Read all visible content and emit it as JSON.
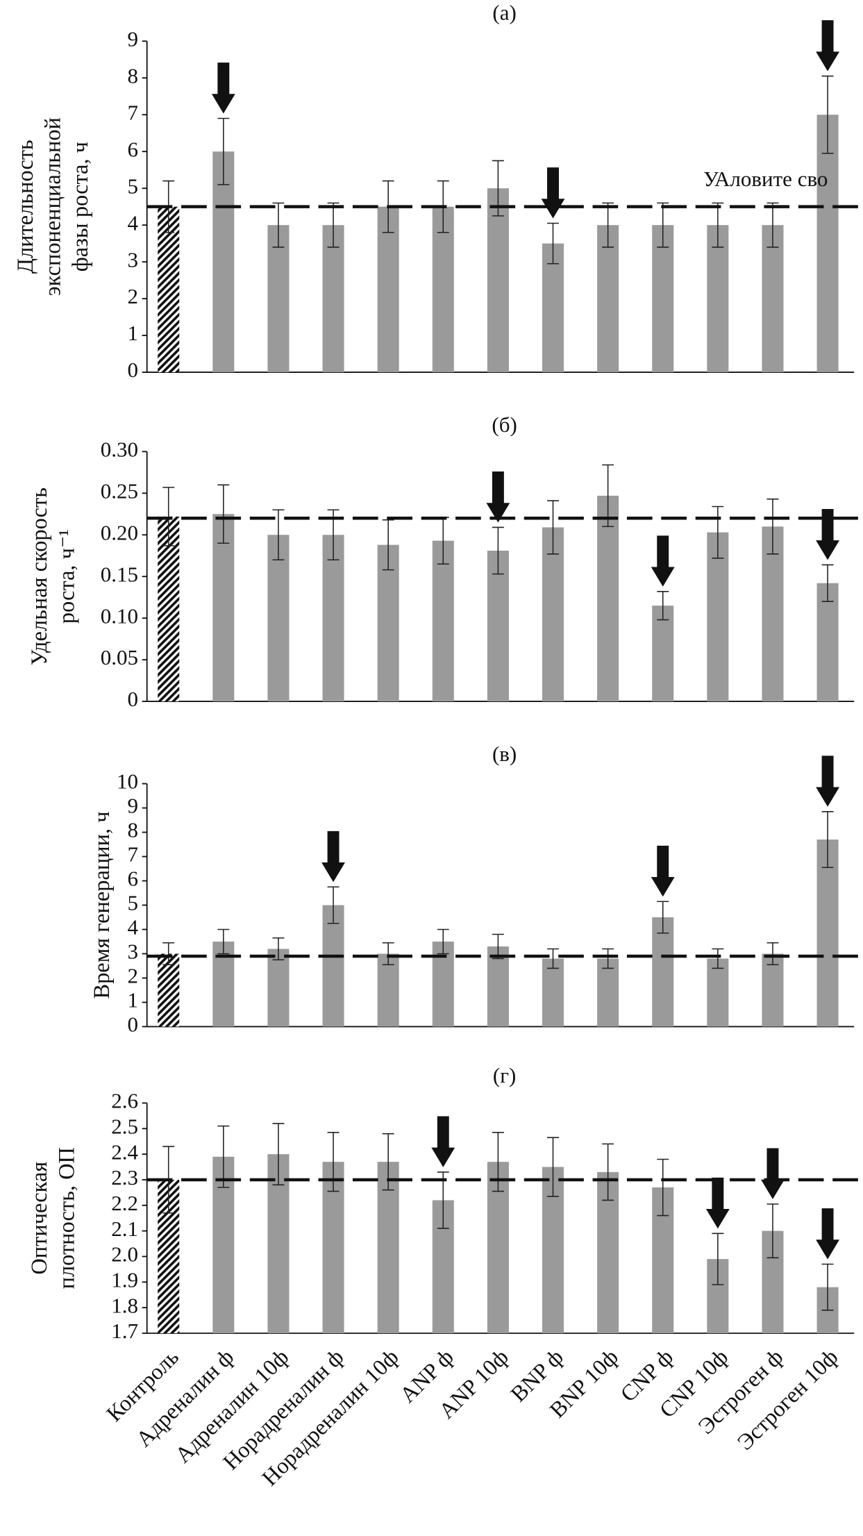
{
  "chart_data": [
    {
      "type": "bar",
      "title": "(а)",
      "ylabel": [
        "Длительность",
        "экспоненциальной",
        "фазы роста, ч"
      ],
      "values": [
        4.5,
        6.0,
        4.0,
        4.0,
        4.5,
        4.5,
        5.0,
        3.5,
        4.0,
        4.0,
        4.0,
        4.0,
        7.0
      ],
      "errors": [
        0.7,
        0.9,
        0.6,
        0.6,
        0.7,
        0.7,
        0.75,
        0.55,
        0.6,
        0.6,
        0.6,
        0.6,
        1.05
      ],
      "marked": [
        false,
        true,
        false,
        false,
        false,
        false,
        false,
        true,
        false,
        false,
        false,
        false,
        true
      ],
      "hatched": [
        true,
        false,
        false,
        false,
        false,
        false,
        false,
        false,
        false,
        false,
        false,
        false,
        false
      ],
      "reference": 4.5,
      "annotation": "УАловите сво",
      "color": "#9a9a9a",
      "ylim": [
        0,
        9
      ],
      "yticks": [
        0,
        1,
        2,
        3,
        4,
        5,
        6,
        7,
        8,
        9
      ]
    },
    {
      "type": "bar",
      "title": "(б)",
      "ylabel": [
        "Удельная скорость",
        "роста, ч⁻¹"
      ],
      "values": [
        0.222,
        0.225,
        0.2,
        0.2,
        0.188,
        0.193,
        0.181,
        0.209,
        0.247,
        0.115,
        0.203,
        0.21,
        0.142
      ],
      "errors": [
        0.035,
        0.035,
        0.03,
        0.03,
        0.03,
        0.028,
        0.028,
        0.032,
        0.037,
        0.017,
        0.031,
        0.033,
        0.022
      ],
      "marked": [
        false,
        false,
        false,
        false,
        false,
        false,
        true,
        false,
        false,
        true,
        false,
        false,
        true
      ],
      "hatched": [
        true,
        false,
        false,
        false,
        false,
        false,
        false,
        false,
        false,
        false,
        false,
        false,
        false
      ],
      "reference": 0.22,
      "color": "#9a9a9a",
      "ylim": [
        0,
        0.3
      ],
      "yticks": [
        0,
        0.05,
        {
          "value": 0.1,
          "label": "0.10"
        },
        0.15,
        {
          "value": 0.2,
          "label": "0.20"
        },
        0.25,
        {
          "value": 0.3,
          "label": "0.30"
        }
      ]
    },
    {
      "type": "bar",
      "title": "(в)",
      "ylabel": [
        "Время генерации, ч"
      ],
      "values": [
        3.0,
        3.5,
        3.2,
        5.0,
        3.0,
        3.5,
        3.3,
        2.8,
        2.8,
        4.5,
        2.8,
        3.0,
        7.7
      ],
      "errors": [
        0.45,
        0.5,
        0.45,
        0.75,
        0.45,
        0.5,
        0.5,
        0.4,
        0.4,
        0.65,
        0.4,
        0.45,
        1.15
      ],
      "marked": [
        false,
        false,
        false,
        true,
        false,
        false,
        false,
        false,
        false,
        true,
        false,
        false,
        true
      ],
      "hatched": [
        true,
        false,
        false,
        false,
        false,
        false,
        false,
        false,
        false,
        false,
        false,
        false,
        false
      ],
      "reference": 2.9,
      "color": "#9a9a9a",
      "ylim": [
        0,
        10
      ],
      "yticks": [
        0,
        1,
        2,
        3,
        4,
        5,
        6,
        7,
        8,
        9,
        10
      ]
    },
    {
      "type": "bar",
      "title": "(г)",
      "ylabel": [
        "Оптическая",
        "плотность, ОП"
      ],
      "categories": [
        "Контроль",
        "Адреналин ф",
        "Адреналин 10ф",
        "Норадреналин ф",
        "Норадреналин 10ф",
        "ANP ф",
        "ANP 10ф",
        "BNP ф",
        "BNP 10ф",
        "CNP ф",
        "CNP 10ф",
        "Эстроген ф",
        "Эстроген 10ф"
      ],
      "values": [
        2.3,
        2.39,
        2.4,
        2.37,
        2.37,
        2.22,
        2.37,
        2.35,
        2.33,
        2.27,
        1.99,
        2.1,
        1.88
      ],
      "errors": [
        0.13,
        0.12,
        0.12,
        0.115,
        0.11,
        0.11,
        0.115,
        0.115,
        0.11,
        0.11,
        0.1,
        0.105,
        0.09
      ],
      "marked": [
        false,
        false,
        false,
        false,
        false,
        true,
        false,
        false,
        false,
        false,
        true,
        true,
        true
      ],
      "hatched": [
        true,
        false,
        false,
        false,
        false,
        false,
        false,
        false,
        false,
        false,
        false,
        false,
        false
      ],
      "reference": 2.3,
      "color": "#9a9a9a",
      "ylim": [
        1.7,
        2.6
      ],
      "yticks": [
        1.7,
        1.8,
        1.9,
        {
          "value": 2.0,
          "label": "2.0"
        },
        2.1,
        2.2,
        2.3,
        2.4,
        2.5,
        2.6
      ]
    }
  ]
}
